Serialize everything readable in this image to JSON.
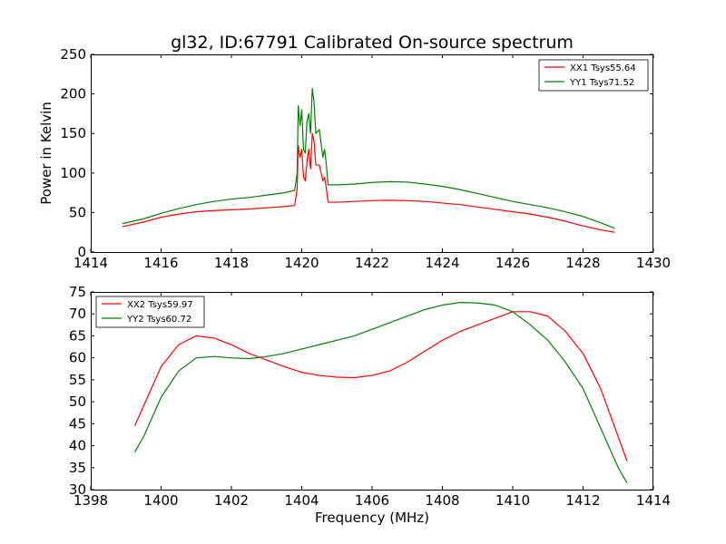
{
  "title": "gl32, ID:67791 Calibrated On-source spectrum",
  "colors": {
    "red": "#ff0000",
    "green": "#008000"
  },
  "chart_data": [
    {
      "type": "line",
      "title": "gl32, ID:67791 Calibrated On-source spectrum",
      "xlabel": "",
      "ylabel": "Power in Kelvin",
      "xlim": [
        1414,
        1430
      ],
      "ylim": [
        0,
        250
      ],
      "xticks": [
        "1414",
        "1416",
        "1418",
        "1420",
        "1422",
        "1424",
        "1426",
        "1428",
        "1430"
      ],
      "yticks": [
        "0",
        "50",
        "100",
        "150",
        "200",
        "250"
      ],
      "grid": false,
      "legend_position": "top-right",
      "series": [
        {
          "name": "XX1 Tsys55.64",
          "color": "#ff0000",
          "points": [
            [
              1414.9,
              32
            ],
            [
              1415.5,
              38
            ],
            [
              1416,
              44
            ],
            [
              1416.5,
              48
            ],
            [
              1417,
              51
            ],
            [
              1417.5,
              52.5
            ],
            [
              1418,
              53.5
            ],
            [
              1418.5,
              54.5
            ],
            [
              1419,
              56
            ],
            [
              1419.5,
              57.5
            ],
            [
              1419.8,
              59
            ],
            [
              1419.87,
              80
            ],
            [
              1419.9,
              135
            ],
            [
              1419.95,
              120
            ],
            [
              1420.0,
              130
            ],
            [
              1420.05,
              95
            ],
            [
              1420.1,
              90
            ],
            [
              1420.15,
              115
            ],
            [
              1420.2,
              130
            ],
            [
              1420.25,
              105
            ],
            [
              1420.3,
              150
            ],
            [
              1420.35,
              140
            ],
            [
              1420.4,
              110
            ],
            [
              1420.5,
              110
            ],
            [
              1420.6,
              90
            ],
            [
              1420.65,
              95
            ],
            [
              1420.7,
              80
            ],
            [
              1420.75,
              63
            ],
            [
              1421,
              63
            ],
            [
              1421.5,
              64
            ],
            [
              1422,
              65
            ],
            [
              1422.5,
              65.5
            ],
            [
              1423,
              65
            ],
            [
              1423.5,
              64
            ],
            [
              1424,
              62
            ],
            [
              1424.5,
              60
            ],
            [
              1425,
              57
            ],
            [
              1425.5,
              54
            ],
            [
              1426,
              51
            ],
            [
              1426.5,
              48
            ],
            [
              1427,
              44
            ],
            [
              1427.5,
              39
            ],
            [
              1428,
              33
            ],
            [
              1428.5,
              28
            ],
            [
              1428.9,
              25
            ]
          ]
        },
        {
          "name": "YY1 Tsys71.52",
          "color": "#008000",
          "points": [
            [
              1414.9,
              36
            ],
            [
              1415.5,
              42
            ],
            [
              1416,
              49
            ],
            [
              1416.5,
              55
            ],
            [
              1417,
              60
            ],
            [
              1417.5,
              64
            ],
            [
              1418,
              67
            ],
            [
              1418.5,
              69
            ],
            [
              1419,
              72
            ],
            [
              1419.5,
              75
            ],
            [
              1419.8,
              78
            ],
            [
              1419.87,
              100
            ],
            [
              1419.9,
              185
            ],
            [
              1419.95,
              160
            ],
            [
              1420.0,
              180
            ],
            [
              1420.05,
              130
            ],
            [
              1420.1,
              125
            ],
            [
              1420.15,
              165
            ],
            [
              1420.2,
              175
            ],
            [
              1420.25,
              150
            ],
            [
              1420.3,
              207
            ],
            [
              1420.35,
              190
            ],
            [
              1420.4,
              150
            ],
            [
              1420.5,
              155
            ],
            [
              1420.6,
              120
            ],
            [
              1420.65,
              130
            ],
            [
              1420.7,
              110
            ],
            [
              1420.75,
              85
            ],
            [
              1421,
              85
            ],
            [
              1421.5,
              86
            ],
            [
              1422,
              88
            ],
            [
              1422.5,
              89
            ],
            [
              1423,
              88.5
            ],
            [
              1423.5,
              86
            ],
            [
              1424,
              83
            ],
            [
              1424.5,
              79
            ],
            [
              1425,
              74
            ],
            [
              1425.5,
              69
            ],
            [
              1426,
              64
            ],
            [
              1426.5,
              60
            ],
            [
              1427,
              56
            ],
            [
              1427.5,
              51
            ],
            [
              1428,
              45
            ],
            [
              1428.5,
              37
            ],
            [
              1428.9,
              30
            ]
          ]
        }
      ]
    },
    {
      "type": "line",
      "title": "",
      "xlabel": "Frequency (MHz)",
      "ylabel": "",
      "xlim": [
        1398,
        1414
      ],
      "ylim": [
        30,
        75
      ],
      "xticks": [
        "1398",
        "1400",
        "1402",
        "1404",
        "1406",
        "1408",
        "1410",
        "1412",
        "1414"
      ],
      "yticks": [
        "30",
        "35",
        "40",
        "45",
        "50",
        "55",
        "60",
        "65",
        "70",
        "75"
      ],
      "grid": false,
      "legend_position": "top-left",
      "series": [
        {
          "name": "XX2 Tsys59.97",
          "color": "#ff0000",
          "points": [
            [
              1399.25,
              44.5
            ],
            [
              1399.5,
              49
            ],
            [
              1400,
              58
            ],
            [
              1400.5,
              63
            ],
            [
              1401,
              65
            ],
            [
              1401.5,
              64.5
            ],
            [
              1402,
              63
            ],
            [
              1402.5,
              61
            ],
            [
              1403,
              59.5
            ],
            [
              1403.5,
              58
            ],
            [
              1404,
              56.7
            ],
            [
              1404.5,
              56
            ],
            [
              1405,
              55.6
            ],
            [
              1405.5,
              55.5
            ],
            [
              1406,
              56
            ],
            [
              1406.5,
              57
            ],
            [
              1407,
              59
            ],
            [
              1407.5,
              61.5
            ],
            [
              1408,
              64
            ],
            [
              1408.5,
              66
            ],
            [
              1409,
              67.5
            ],
            [
              1409.5,
              69
            ],
            [
              1410,
              70.5
            ],
            [
              1410.5,
              70.5
            ],
            [
              1411,
              69.5
            ],
            [
              1411.5,
              66
            ],
            [
              1412,
              61
            ],
            [
              1412.5,
              53
            ],
            [
              1413,
              42
            ],
            [
              1413.25,
              36.5
            ]
          ]
        },
        {
          "name": "YY2 Tsys60.72",
          "color": "#008000",
          "points": [
            [
              1399.25,
              38.5
            ],
            [
              1399.5,
              42
            ],
            [
              1400,
              51
            ],
            [
              1400.5,
              57
            ],
            [
              1401,
              60
            ],
            [
              1401.5,
              60.3
            ],
            [
              1402,
              60
            ],
            [
              1402.5,
              59.8
            ],
            [
              1403,
              60.3
            ],
            [
              1403.5,
              61
            ],
            [
              1404,
              62
            ],
            [
              1404.5,
              63
            ],
            [
              1405,
              64
            ],
            [
              1405.5,
              65
            ],
            [
              1406,
              66.5
            ],
            [
              1406.5,
              68
            ],
            [
              1407,
              69.5
            ],
            [
              1407.5,
              71
            ],
            [
              1408,
              72
            ],
            [
              1408.5,
              72.6
            ],
            [
              1409,
              72.5
            ],
            [
              1409.5,
              72
            ],
            [
              1410,
              70.5
            ],
            [
              1410.5,
              67.5
            ],
            [
              1411,
              64
            ],
            [
              1411.5,
              59
            ],
            [
              1412,
              53
            ],
            [
              1412.5,
              44
            ],
            [
              1413,
              35
            ],
            [
              1413.25,
              31.5
            ]
          ]
        }
      ]
    }
  ]
}
